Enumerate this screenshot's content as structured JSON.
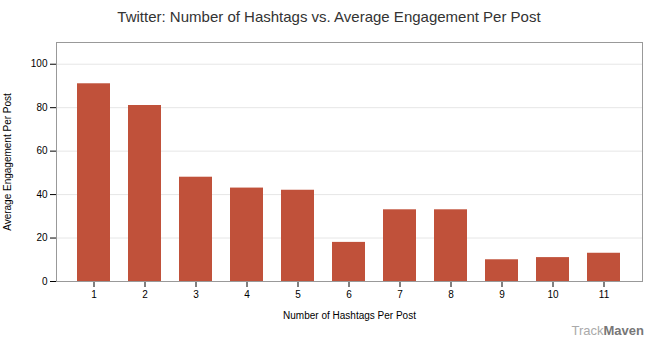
{
  "chart_data": {
    "type": "bar",
    "title": "Twitter: Number of Hashtags vs. Average Engagement Per Post",
    "xlabel": "Number of Hashtags Per Post",
    "ylabel": "Average Engagement Per Post",
    "categories": [
      1,
      2,
      3,
      4,
      5,
      6,
      7,
      8,
      9,
      10,
      11
    ],
    "values": [
      91,
      81,
      48,
      43,
      42,
      18,
      33,
      33,
      10,
      11,
      13
    ],
    "color": "#c0513a",
    "ylim": [
      0,
      110
    ],
    "yticks": [
      0,
      20,
      40,
      60,
      80,
      100
    ],
    "grid": true,
    "annotations": [
      "Track",
      "Maven"
    ]
  }
}
